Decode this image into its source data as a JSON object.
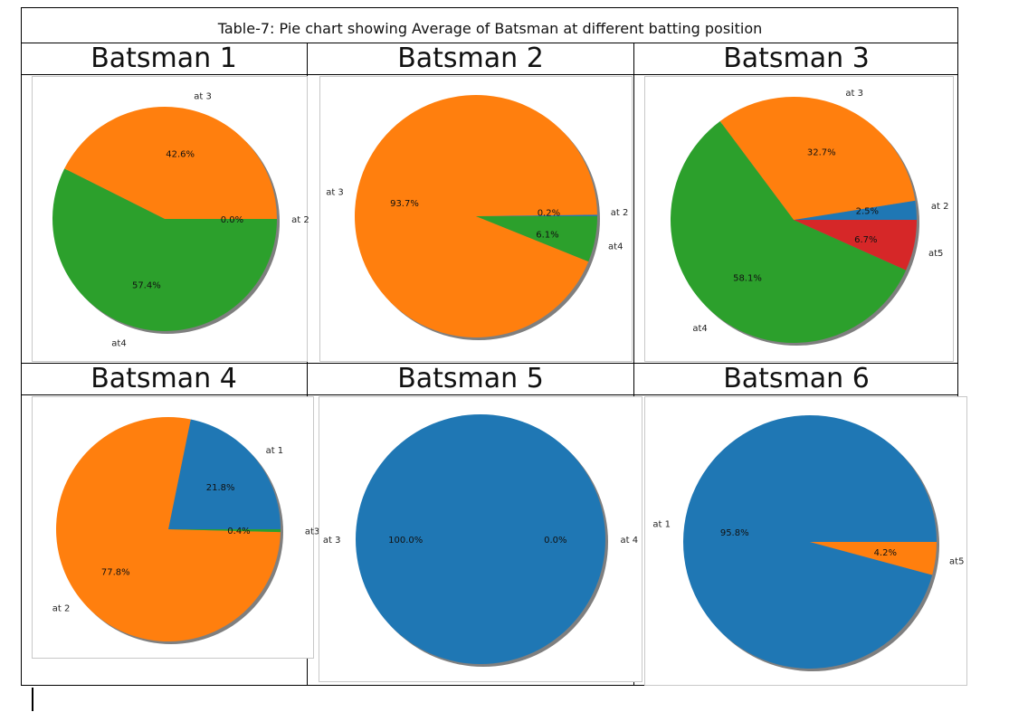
{
  "caption": "Table-7: Pie chart showing Average of Batsman at different batting position",
  "colors": {
    "blue": "#1f77b4",
    "orange": "#ff7f0e",
    "green": "#2ca02c",
    "red": "#d62728",
    "shadow": "#7f7f7f"
  },
  "headers": [
    "Batsman 1",
    "Batsman 2",
    "Batsman 3",
    "Batsman 4",
    "Batsman 5",
    "Batsman 6"
  ],
  "chart_data": [
    {
      "type": "pie",
      "title": "Batsman 1",
      "slices": [
        {
          "label": "at 2",
          "value": 0.0,
          "pct": "0.0%",
          "color": "#1f77b4"
        },
        {
          "label": "at 3",
          "value": 42.6,
          "pct": "42.6%",
          "color": "#ff7f0e"
        },
        {
          "label": "at4",
          "value": 57.4,
          "pct": "57.4%",
          "color": "#2ca02c"
        }
      ]
    },
    {
      "type": "pie",
      "title": "Batsman 2",
      "slices": [
        {
          "label": "at 2",
          "value": 0.2,
          "pct": "0.2%",
          "color": "#1f77b4"
        },
        {
          "label": "at 3",
          "value": 93.7,
          "pct": "93.7%",
          "color": "#ff7f0e"
        },
        {
          "label": "at4",
          "value": 6.1,
          "pct": "6.1%",
          "color": "#2ca02c"
        }
      ]
    },
    {
      "type": "pie",
      "title": "Batsman 3",
      "slices": [
        {
          "label": "at 2",
          "value": 2.5,
          "pct": "2.5%",
          "color": "#1f77b4"
        },
        {
          "label": "at 3",
          "value": 32.7,
          "pct": "32.7%",
          "color": "#ff7f0e"
        },
        {
          "label": "at4",
          "value": 58.1,
          "pct": "58.1%",
          "color": "#2ca02c"
        },
        {
          "label": "at5",
          "value": 6.7,
          "pct": "6.7%",
          "color": "#d62728"
        }
      ]
    },
    {
      "type": "pie",
      "title": "Batsman 4",
      "slices": [
        {
          "label": "at 1",
          "value": 21.8,
          "pct": "21.8%",
          "color": "#1f77b4"
        },
        {
          "label": "at 2",
          "value": 77.8,
          "pct": "77.8%",
          "color": "#ff7f0e"
        },
        {
          "label": "at3",
          "value": 0.4,
          "pct": "0.4%",
          "color": "#2ca02c"
        }
      ]
    },
    {
      "type": "pie",
      "title": "Batsman 5",
      "slices": [
        {
          "label": "at 3",
          "value": 100.0,
          "pct": "100.0%",
          "color": "#1f77b4"
        },
        {
          "label": "at 4",
          "value": 0.0,
          "pct": "0.0%",
          "color": "#ff7f0e"
        }
      ]
    },
    {
      "type": "pie",
      "title": "Batsman 6",
      "slices": [
        {
          "label": "at 1",
          "value": 95.8,
          "pct": "95.8%",
          "color": "#1f77b4"
        },
        {
          "label": "at5",
          "value": 4.2,
          "pct": "4.2%",
          "color": "#ff7f0e"
        }
      ]
    }
  ]
}
